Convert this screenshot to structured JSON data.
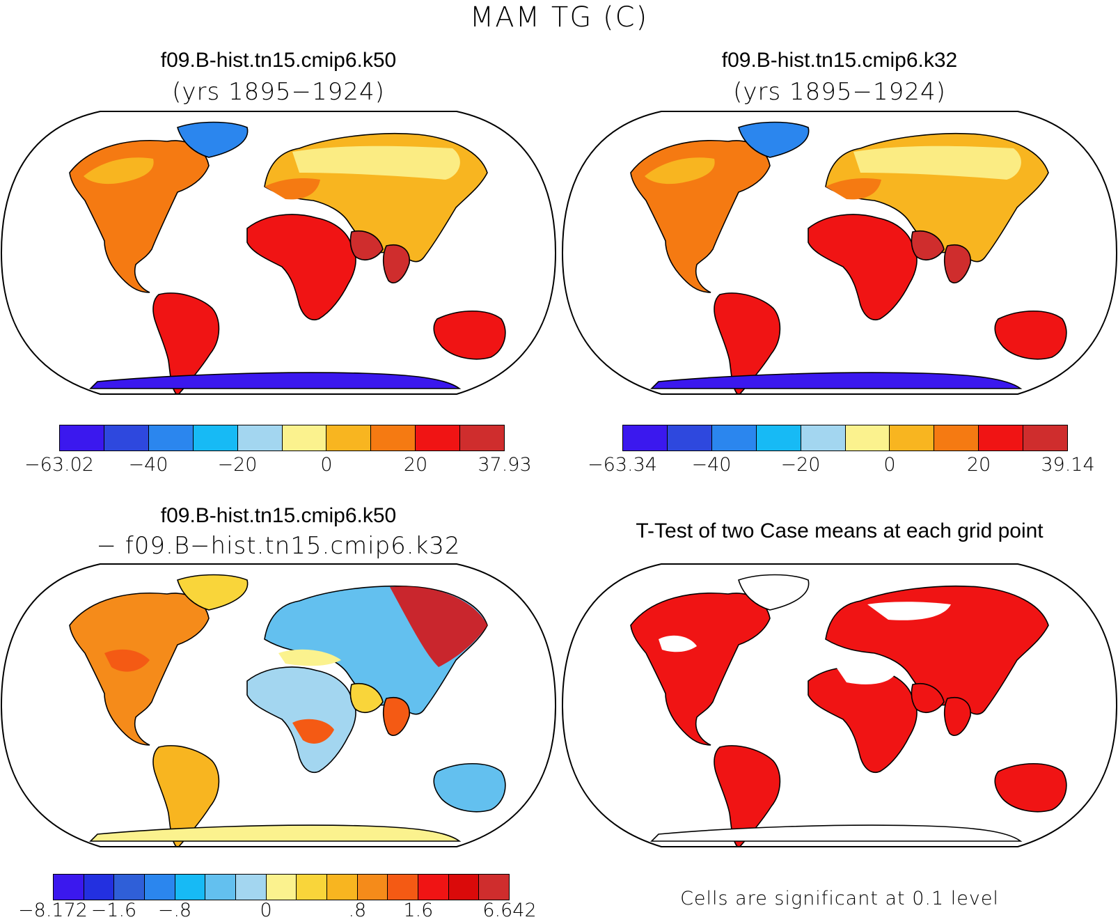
{
  "title": "MAM TG (C)",
  "panels": {
    "p1": {
      "title": "f09.B-hist.tn15.cmip6.k50",
      "subtitle": "(yrs 1895−1924)",
      "colorbar": {
        "colors": [
          "#3b18ee",
          "#2e48de",
          "#2b86ee",
          "#17baf5",
          "#a3d6f0",
          "#fbf28e",
          "#f8b520",
          "#f57a12",
          "#f01414",
          "#cf2d2d"
        ],
        "labels": [
          "−63.02",
          "−40",
          "−20",
          "0",
          "20",
          "37.93"
        ]
      }
    },
    "p2": {
      "title": "f09.B-hist.tn15.cmip6.k32",
      "subtitle": "(yrs 1895−1924)",
      "colorbar": {
        "colors": [
          "#3b18ee",
          "#2e48de",
          "#2b86ee",
          "#17baf5",
          "#a3d6f0",
          "#fbf28e",
          "#f8b520",
          "#f57a12",
          "#f01414",
          "#cf2d2d"
        ],
        "labels": [
          "−63.34",
          "−40",
          "−20",
          "0",
          "20",
          "39.14"
        ]
      }
    },
    "p3": {
      "title": "f09.B-hist.tn15.cmip6.k50",
      "subtitle": "− f09.B−hist.tn15.cmip6.k32",
      "colorbar": {
        "colors": [
          "#3b18ee",
          "#2330e0",
          "#2f5fd8",
          "#2b86ee",
          "#17baf5",
          "#63c0ef",
          "#a3d6f0",
          "#fbf28e",
          "#f9d53a",
          "#f8b520",
          "#f58b1a",
          "#f45a14",
          "#f01414",
          "#da0a0a",
          "#cf2d2d"
        ],
        "labels": [
          "−8.172",
          "−1.6",
          "−.8",
          "0",
          ".8",
          "1.6",
          "6.642"
        ]
      }
    },
    "p4": {
      "title": "T-Test of two Case means at each grid point",
      "note": "Cells are significant at 0.1 level"
    }
  }
}
